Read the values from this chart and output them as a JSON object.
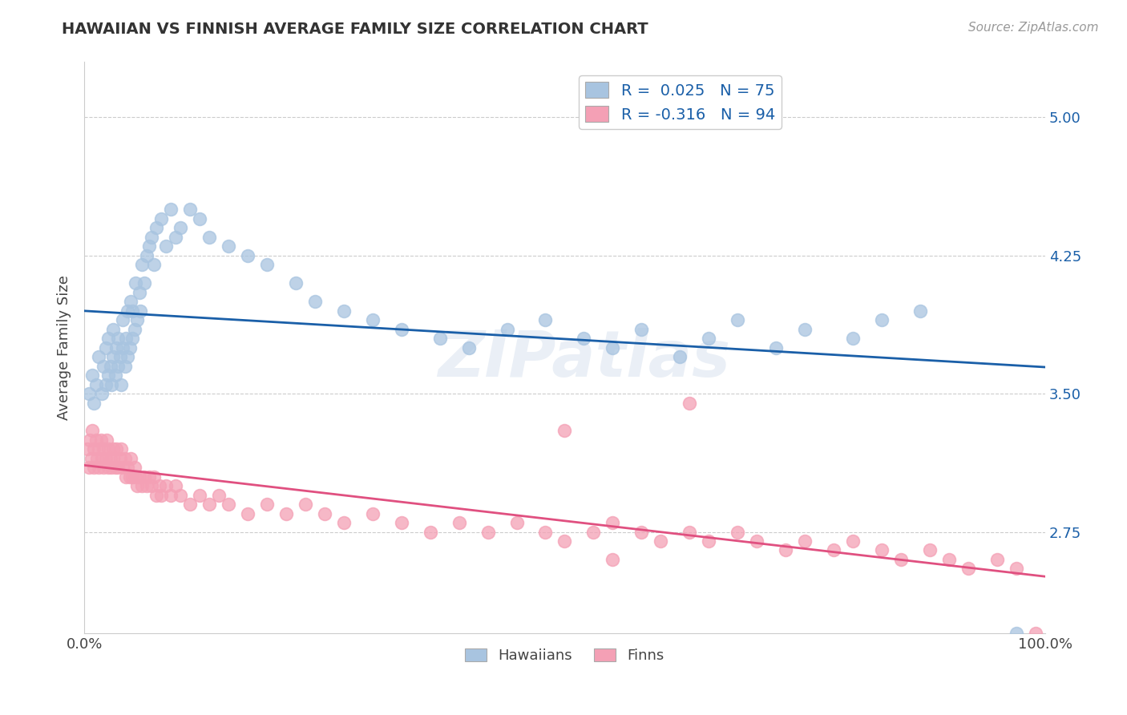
{
  "title": "HAWAIIAN VS FINNISH AVERAGE FAMILY SIZE CORRELATION CHART",
  "source_text": "Source: ZipAtlas.com",
  "ylabel": "Average Family Size",
  "xlim": [
    0,
    1
  ],
  "ylim": [
    2.2,
    5.3
  ],
  "yticks": [
    2.75,
    3.5,
    4.25,
    5.0
  ],
  "xticks": [
    0.0,
    1.0
  ],
  "xticklabels": [
    "0.0%",
    "100.0%"
  ],
  "yticklabels_right": [
    "2.75",
    "3.50",
    "4.25",
    "5.00"
  ],
  "hawaiian_color": "#a8c4e0",
  "hawaiian_line_color": "#1a5fa8",
  "finn_color": "#f4a0b5",
  "finn_line_color": "#e05080",
  "R_hawaiian": 0.025,
  "N_hawaiian": 75,
  "R_finn": -0.316,
  "N_finn": 94,
  "hawaiian_points_x": [
    0.005,
    0.008,
    0.01,
    0.012,
    0.015,
    0.018,
    0.02,
    0.022,
    0.022,
    0.025,
    0.025,
    0.027,
    0.028,
    0.03,
    0.03,
    0.032,
    0.033,
    0.035,
    0.035,
    0.037,
    0.038,
    0.04,
    0.04,
    0.042,
    0.043,
    0.045,
    0.045,
    0.047,
    0.048,
    0.05,
    0.05,
    0.052,
    0.053,
    0.055,
    0.057,
    0.058,
    0.06,
    0.062,
    0.065,
    0.067,
    0.07,
    0.072,
    0.075,
    0.08,
    0.085,
    0.09,
    0.095,
    0.1,
    0.11,
    0.12,
    0.13,
    0.15,
    0.17,
    0.19,
    0.22,
    0.24,
    0.27,
    0.3,
    0.33,
    0.37,
    0.4,
    0.44,
    0.48,
    0.52,
    0.55,
    0.58,
    0.62,
    0.65,
    0.68,
    0.72,
    0.75,
    0.8,
    0.83,
    0.87,
    0.97
  ],
  "hawaiian_points_y": [
    3.5,
    3.6,
    3.45,
    3.55,
    3.7,
    3.5,
    3.65,
    3.55,
    3.75,
    3.6,
    3.8,
    3.65,
    3.55,
    3.7,
    3.85,
    3.6,
    3.75,
    3.65,
    3.8,
    3.7,
    3.55,
    3.75,
    3.9,
    3.65,
    3.8,
    3.7,
    3.95,
    3.75,
    4.0,
    3.8,
    3.95,
    3.85,
    4.1,
    3.9,
    4.05,
    3.95,
    4.2,
    4.1,
    4.25,
    4.3,
    4.35,
    4.2,
    4.4,
    4.45,
    4.3,
    4.5,
    4.35,
    4.4,
    4.5,
    4.45,
    4.35,
    4.3,
    4.25,
    4.2,
    4.1,
    4.0,
    3.95,
    3.9,
    3.85,
    3.8,
    3.75,
    3.85,
    3.9,
    3.8,
    3.75,
    3.85,
    3.7,
    3.8,
    3.9,
    3.75,
    3.85,
    3.8,
    3.9,
    3.95,
    2.2
  ],
  "finn_points_x": [
    0.003,
    0.005,
    0.006,
    0.007,
    0.008,
    0.01,
    0.01,
    0.012,
    0.013,
    0.015,
    0.015,
    0.017,
    0.018,
    0.02,
    0.02,
    0.022,
    0.023,
    0.025,
    0.025,
    0.027,
    0.028,
    0.03,
    0.03,
    0.032,
    0.033,
    0.035,
    0.037,
    0.038,
    0.04,
    0.042,
    0.043,
    0.045,
    0.047,
    0.048,
    0.05,
    0.052,
    0.053,
    0.055,
    0.057,
    0.06,
    0.062,
    0.065,
    0.067,
    0.07,
    0.072,
    0.075,
    0.078,
    0.08,
    0.085,
    0.09,
    0.095,
    0.1,
    0.11,
    0.12,
    0.13,
    0.14,
    0.15,
    0.17,
    0.19,
    0.21,
    0.23,
    0.25,
    0.27,
    0.3,
    0.33,
    0.36,
    0.39,
    0.42,
    0.45,
    0.48,
    0.5,
    0.53,
    0.55,
    0.58,
    0.6,
    0.63,
    0.65,
    0.68,
    0.7,
    0.73,
    0.75,
    0.78,
    0.8,
    0.83,
    0.85,
    0.88,
    0.9,
    0.92,
    0.95,
    0.97,
    0.5,
    0.63,
    0.55,
    0.99
  ],
  "finn_points_y": [
    3.2,
    3.1,
    3.25,
    3.15,
    3.3,
    3.2,
    3.1,
    3.25,
    3.15,
    3.2,
    3.1,
    3.25,
    3.15,
    3.2,
    3.1,
    3.15,
    3.25,
    3.1,
    3.2,
    3.15,
    3.1,
    3.2,
    3.15,
    3.1,
    3.2,
    3.1,
    3.15,
    3.2,
    3.1,
    3.15,
    3.05,
    3.1,
    3.05,
    3.15,
    3.05,
    3.1,
    3.05,
    3.0,
    3.05,
    3.0,
    3.05,
    3.0,
    3.05,
    3.0,
    3.05,
    2.95,
    3.0,
    2.95,
    3.0,
    2.95,
    3.0,
    2.95,
    2.9,
    2.95,
    2.9,
    2.95,
    2.9,
    2.85,
    2.9,
    2.85,
    2.9,
    2.85,
    2.8,
    2.85,
    2.8,
    2.75,
    2.8,
    2.75,
    2.8,
    2.75,
    2.7,
    2.75,
    2.8,
    2.75,
    2.7,
    2.75,
    2.7,
    2.75,
    2.7,
    2.65,
    2.7,
    2.65,
    2.7,
    2.65,
    2.6,
    2.65,
    2.6,
    2.55,
    2.6,
    2.55,
    3.3,
    3.45,
    2.6,
    2.2
  ]
}
